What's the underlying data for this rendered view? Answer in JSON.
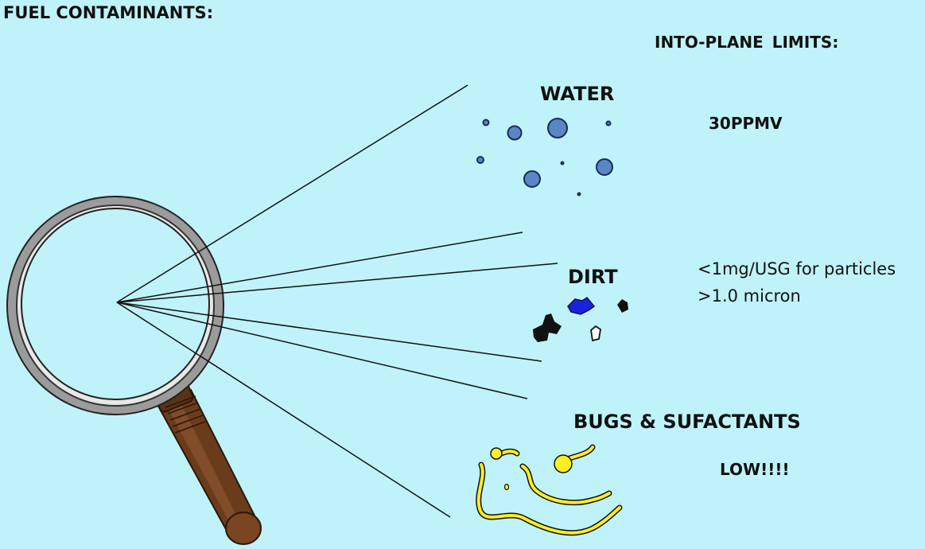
{
  "title": "FUEL CONTAMINANTS:",
  "limits_header": "INTO-PLANE  LIMITS:",
  "contaminants": [
    {
      "name": "WATER",
      "limit_lines": [
        "30PPMV"
      ]
    },
    {
      "name": "DIRT",
      "limit_lines": [
        "<1mg/USG  for particles",
        ">1.0 micron"
      ]
    },
    {
      "name": "BUGS & SUFACTANTS",
      "limit_lines": [
        "LOW!!!!"
      ]
    }
  ],
  "colors": {
    "background": "#bff3f9",
    "water_drop": "#5b86c6",
    "dirt_blue": "#1a22e0",
    "dirt_black": "#111111",
    "bugs_yellow": "#ffee22",
    "handle": "#6b3c1c"
  },
  "icons": [
    "magnifying-glass-icon",
    "water-drops-icon",
    "dirt-particles-icon",
    "bugs-squiggles-icon"
  ]
}
